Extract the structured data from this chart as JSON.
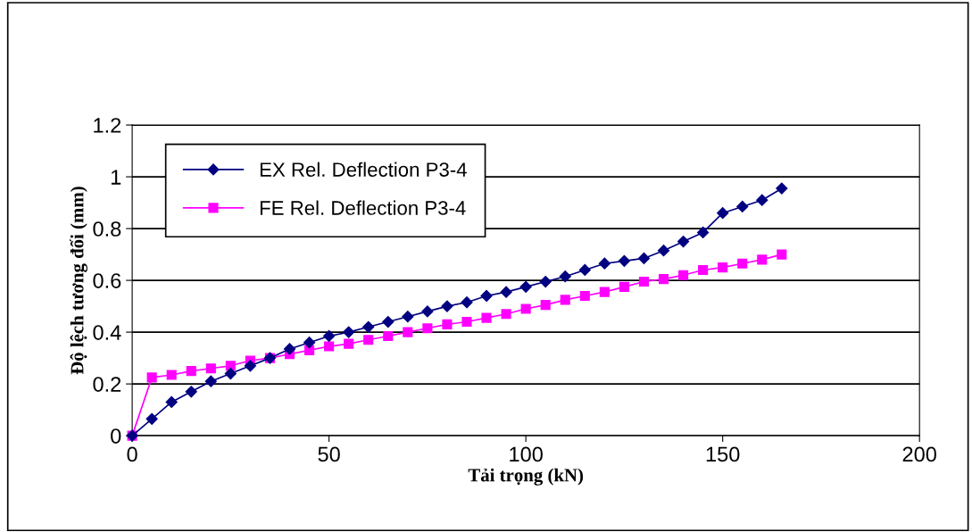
{
  "chart_data": {
    "type": "line",
    "xlabel": "Tải trọng (kN)",
    "ylabel": "Độ lệch tương đối (mm)",
    "x": [
      0,
      5,
      10,
      15,
      20,
      25,
      30,
      35,
      40,
      45,
      50,
      55,
      60,
      65,
      70,
      75,
      80,
      85,
      90,
      95,
      100,
      105,
      110,
      115,
      120,
      125,
      130,
      135,
      140,
      145,
      150,
      155,
      160,
      165
    ],
    "series": [
      {
        "name": "EX Rel. Deflection P3-4",
        "color": "#000080",
        "marker": "diamond",
        "values": [
          0,
          0.065,
          0.13,
          0.17,
          0.21,
          0.24,
          0.27,
          0.3,
          0.335,
          0.36,
          0.385,
          0.4,
          0.42,
          0.44,
          0.46,
          0.48,
          0.5,
          0.515,
          0.54,
          0.555,
          0.575,
          0.595,
          0.615,
          0.64,
          0.665,
          0.675,
          0.685,
          0.715,
          0.75,
          0.785,
          0.86,
          0.885,
          0.91,
          0.955
        ]
      },
      {
        "name": "FE Rel. Deflection P3-4",
        "color": "#ff00ff",
        "marker": "square",
        "values": [
          0,
          0.225,
          0.235,
          0.25,
          0.26,
          0.27,
          0.29,
          0.3,
          0.315,
          0.33,
          0.345,
          0.355,
          0.37,
          0.385,
          0.4,
          0.415,
          0.43,
          0.44,
          0.455,
          0.47,
          0.49,
          0.505,
          0.525,
          0.54,
          0.555,
          0.575,
          0.595,
          0.605,
          0.62,
          0.64,
          0.65,
          0.665,
          0.68,
          0.7
        ]
      }
    ],
    "xlim": [
      0,
      200
    ],
    "xticks": [
      0,
      50,
      100,
      150,
      200
    ],
    "ylim": [
      0,
      1.2
    ],
    "yticks": [
      0,
      0.2,
      0.4,
      0.6,
      0.8,
      1,
      1.2
    ],
    "grid": "y",
    "legend": "top left",
    "line_style": "solid"
  }
}
